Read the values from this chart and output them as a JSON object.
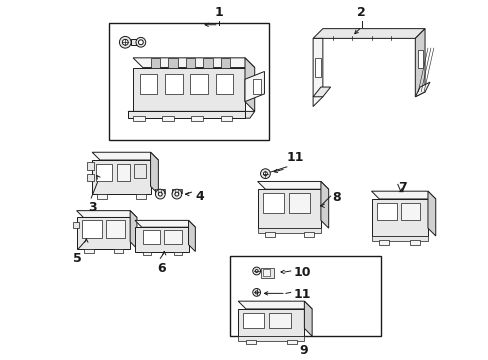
{
  "bg_color": "#ffffff",
  "line_color": "#1a1a1a",
  "part_fill": "#e8e8e8",
  "part_fill2": "#f5f5f5",
  "fig_width": 4.89,
  "fig_height": 3.6,
  "dpi": 100
}
